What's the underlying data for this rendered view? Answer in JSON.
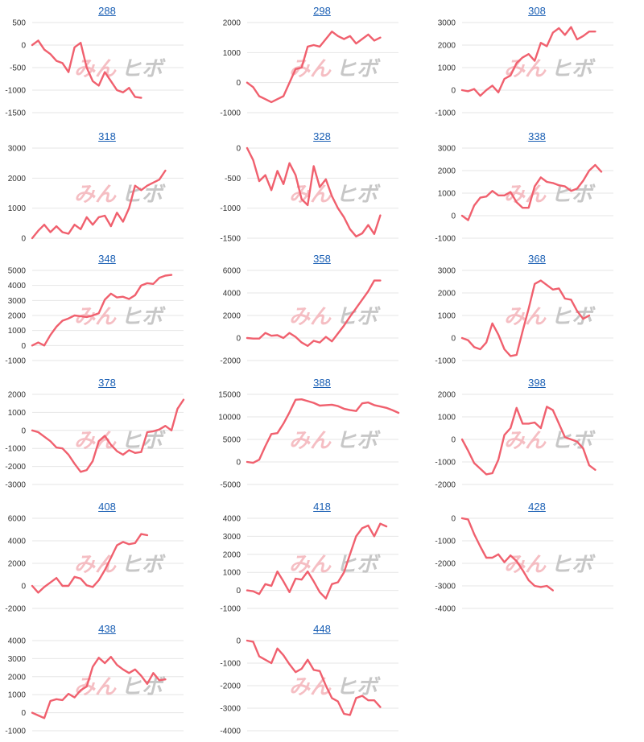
{
  "series_color": "#f0606e",
  "title_color": "#1a5fb4",
  "watermark": {
    "part1": "みん",
    "part2": "ヒボ"
  },
  "chart_data": [
    {
      "type": "line",
      "title": "288",
      "ylim": [
        -1500,
        500
      ],
      "yticks": [
        500,
        0,
        -500,
        -1000,
        -1500
      ],
      "values": [
        0,
        100,
        -100,
        -200,
        -350,
        -400,
        -600,
        -50,
        50,
        -500,
        -800,
        -900,
        -600,
        -800,
        -1000,
        -1050,
        -950,
        -1150,
        -1170
      ]
    },
    {
      "type": "line",
      "title": "298",
      "ylim": [
        -1000,
        2000
      ],
      "yticks": [
        2000,
        1000,
        0,
        -1000
      ],
      "values": [
        0,
        -150,
        -450,
        -550,
        -650,
        -550,
        -450,
        0,
        450,
        500,
        1200,
        1250,
        1200,
        1450,
        1700,
        1550,
        1450,
        1550,
        1300,
        1450,
        1600,
        1400,
        1500
      ]
    },
    {
      "type": "line",
      "title": "308",
      "ylim": [
        -1000,
        3000
      ],
      "yticks": [
        3000,
        2000,
        1000,
        0,
        -1000
      ],
      "values": [
        0,
        -50,
        50,
        -250,
        0,
        200,
        -100,
        500,
        650,
        1200,
        1450,
        1600,
        1300,
        2100,
        1950,
        2550,
        2750,
        2450,
        2800,
        2250,
        2400,
        2600,
        2600
      ]
    },
    {
      "type": "line",
      "title": "318",
      "ylim": [
        0,
        3000
      ],
      "yticks": [
        3000,
        2000,
        1000,
        0
      ],
      "values": [
        0,
        250,
        450,
        200,
        400,
        200,
        150,
        450,
        300,
        700,
        450,
        700,
        750,
        400,
        850,
        550,
        1000,
        1750,
        1600,
        1750,
        1850,
        1950,
        2250
      ]
    },
    {
      "type": "line",
      "title": "328",
      "ylim": [
        -1500,
        0
      ],
      "yticks": [
        0,
        -500,
        -1000,
        -1500
      ],
      "values": [
        0,
        -200,
        -550,
        -450,
        -700,
        -380,
        -600,
        -250,
        -450,
        -850,
        -950,
        -300,
        -650,
        -520,
        -800,
        -1000,
        -1150,
        -1350,
        -1470,
        -1420,
        -1280,
        -1430,
        -1120
      ]
    },
    {
      "type": "line",
      "title": "338",
      "ylim": [
        -1000,
        3000
      ],
      "yticks": [
        3000,
        2000,
        1000,
        0,
        -1000
      ],
      "values": [
        0,
        -200,
        450,
        800,
        850,
        1100,
        900,
        900,
        1050,
        600,
        350,
        350,
        1300,
        1700,
        1500,
        1450,
        1350,
        1300,
        1100,
        1200,
        1550,
        2000,
        2250,
        1950
      ]
    },
    {
      "type": "line",
      "title": "348",
      "ylim": [
        -1000,
        5000
      ],
      "yticks": [
        5000,
        4000,
        3000,
        2000,
        1000,
        0,
        -1000
      ],
      "values": [
        0,
        200,
        0,
        700,
        1250,
        1650,
        1800,
        2000,
        1950,
        1900,
        2000,
        2150,
        3050,
        3450,
        3200,
        3250,
        3100,
        3350,
        4000,
        4150,
        4100,
        4500,
        4650,
        4700
      ]
    },
    {
      "type": "line",
      "title": "358",
      "ylim": [
        -2000,
        6000
      ],
      "yticks": [
        6000,
        4000,
        2000,
        0,
        -2000
      ],
      "values": [
        0,
        -50,
        -50,
        450,
        200,
        250,
        0,
        450,
        100,
        -400,
        -700,
        -250,
        -400,
        100,
        -300,
        400,
        1100,
        1900,
        2650,
        3400,
        4150,
        5100,
        5100
      ]
    },
    {
      "type": "line",
      "title": "368",
      "ylim": [
        -1000,
        3000
      ],
      "yticks": [
        3000,
        2000,
        1000,
        0,
        -1000
      ],
      "values": [
        0,
        -100,
        -400,
        -500,
        -200,
        650,
        150,
        -500,
        -800,
        -750,
        300,
        1300,
        2400,
        2550,
        2350,
        2150,
        2200,
        1750,
        1700,
        1200,
        850,
        1000
      ]
    },
    {
      "type": "line",
      "title": "378",
      "ylim": [
        -3000,
        2000
      ],
      "yticks": [
        2000,
        1000,
        0,
        -1000,
        -2000,
        -3000
      ],
      "values": [
        0,
        -100,
        -350,
        -600,
        -950,
        -1000,
        -1350,
        -1850,
        -2300,
        -2200,
        -1700,
        -600,
        -300,
        -800,
        -1150,
        -1350,
        -1100,
        -1250,
        -1200,
        -100,
        -50,
        50,
        250,
        0,
        1200,
        1700
      ]
    },
    {
      "type": "line",
      "title": "388",
      "ylim": [
        -5000,
        15000
      ],
      "yticks": [
        15000,
        10000,
        5000,
        0,
        -5000
      ],
      "values": [
        0,
        -200,
        500,
        3500,
        6200,
        6400,
        8500,
        11000,
        13800,
        13900,
        13500,
        13100,
        12500,
        12600,
        12700,
        12400,
        11800,
        11500,
        11300,
        13000,
        13200,
        12600,
        12300,
        12000,
        11500,
        10900
      ]
    },
    {
      "type": "line",
      "title": "398",
      "ylim": [
        -2000,
        2000
      ],
      "yticks": [
        2000,
        1000,
        0,
        -1000,
        -2000
      ],
      "values": [
        0,
        -500,
        -1050,
        -1300,
        -1550,
        -1500,
        -900,
        200,
        500,
        1400,
        700,
        700,
        750,
        500,
        1450,
        1300,
        700,
        100,
        0,
        -100,
        -400,
        -1150,
        -1350
      ]
    },
    {
      "type": "line",
      "title": "408",
      "ylim": [
        -2000,
        6000
      ],
      "yticks": [
        6000,
        4000,
        2000,
        0,
        -2000
      ],
      "values": [
        0,
        -600,
        -100,
        300,
        700,
        0,
        0,
        800,
        650,
        50,
        -100,
        500,
        1400,
        2500,
        3600,
        3900,
        3700,
        3800,
        4600,
        4500
      ]
    },
    {
      "type": "line",
      "title": "418",
      "ylim": [
        -1000,
        4000
      ],
      "yticks": [
        4000,
        3000,
        2000,
        1000,
        0,
        -1000
      ],
      "values": [
        0,
        -50,
        -200,
        350,
        250,
        1050,
        500,
        -100,
        650,
        600,
        1050,
        500,
        -100,
        -450,
        350,
        450,
        1000,
        2000,
        3000,
        3450,
        3600,
        3000,
        3700,
        3550
      ]
    },
    {
      "type": "line",
      "title": "428",
      "ylim": [
        -4000,
        0
      ],
      "yticks": [
        0,
        -1000,
        -2000,
        -3000,
        -4000
      ],
      "values": [
        0,
        -50,
        -700,
        -1250,
        -1750,
        -1750,
        -1600,
        -1950,
        -1650,
        -1900,
        -2300,
        -2750,
        -3000,
        -3050,
        -3000,
        -3200
      ]
    },
    {
      "type": "line",
      "title": "438",
      "ylim": [
        -1000,
        4000
      ],
      "yticks": [
        4000,
        3000,
        2000,
        1000,
        0,
        -1000
      ],
      "values": [
        0,
        -150,
        -300,
        650,
        750,
        700,
        1050,
        850,
        1250,
        1450,
        2550,
        3050,
        2750,
        3100,
        2650,
        2400,
        2200,
        2400,
        2050,
        1600,
        2200,
        1800,
        1850
      ]
    },
    {
      "type": "line",
      "title": "448",
      "ylim": [
        -4000,
        0
      ],
      "yticks": [
        0,
        -1000,
        -2000,
        -3000,
        -4000
      ],
      "values": [
        0,
        -50,
        -700,
        -850,
        -1000,
        -350,
        -650,
        -1050,
        -1400,
        -1250,
        -850,
        -1300,
        -1350,
        -2000,
        -2550,
        -2700,
        -3250,
        -3300,
        -2550,
        -2450,
        -2650,
        -2650,
        -2950
      ]
    }
  ]
}
